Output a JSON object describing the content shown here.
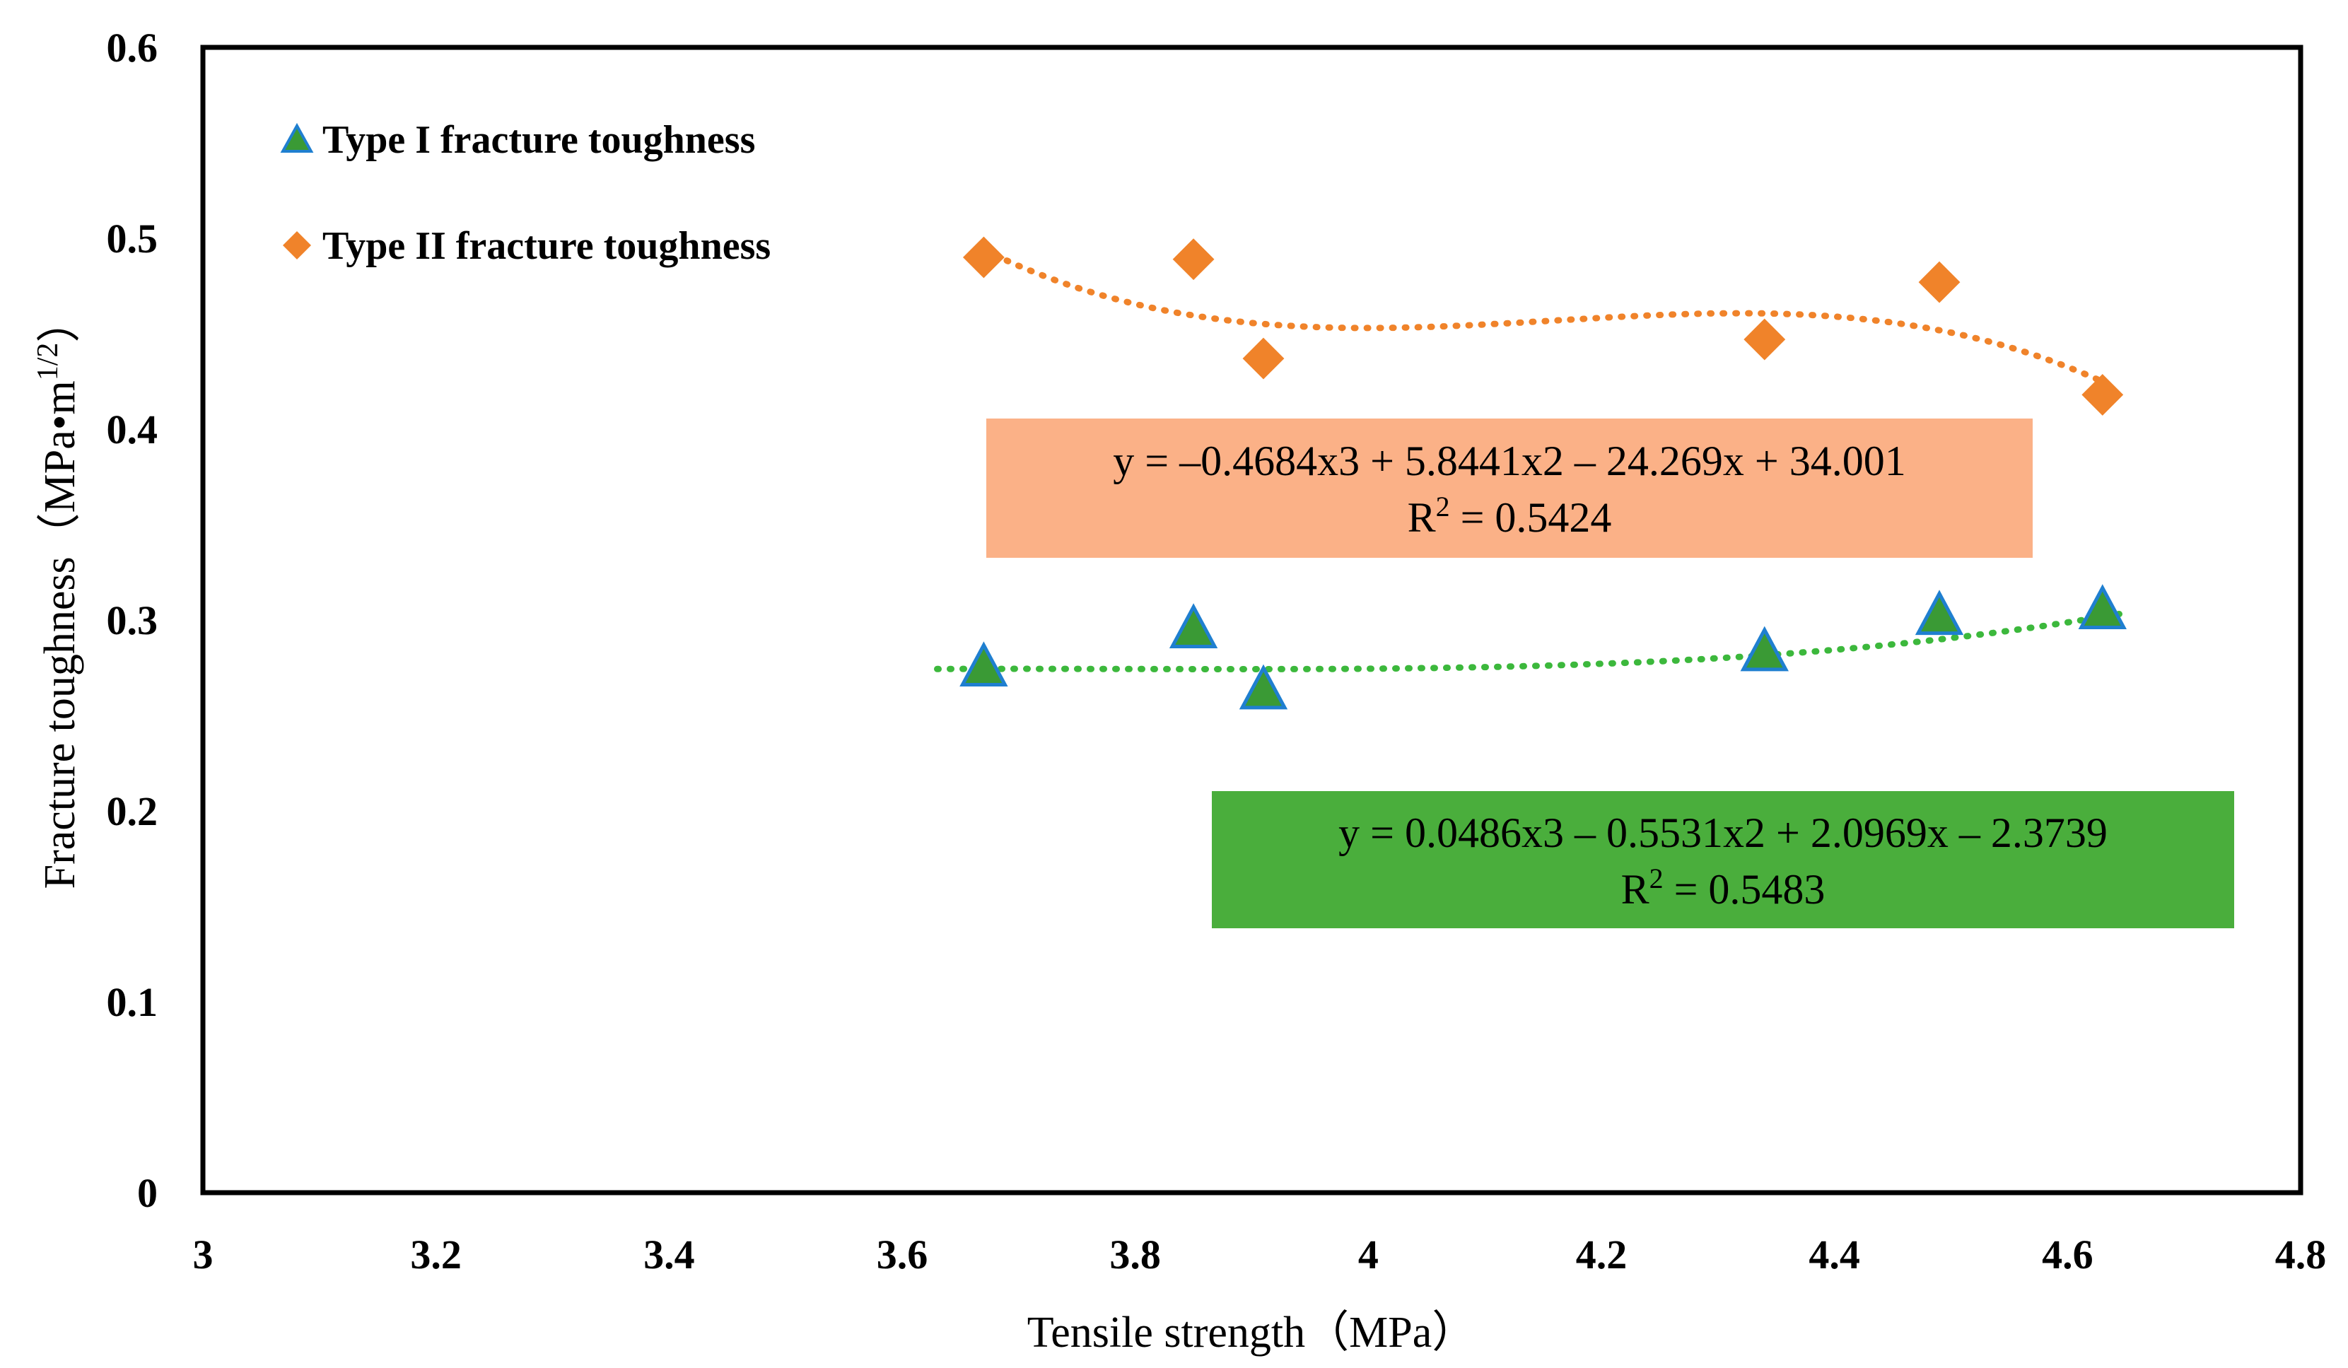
{
  "chart_data": {
    "type": "scatter",
    "title": "",
    "xlabel": "Tensile strength（MPa）",
    "ylabel": "Fracture toughness（MPa•m1/2）",
    "ylabel_main": "Fracture toughness（MPa•m",
    "ylabel_sup": "1/2",
    "ylabel_end": "）",
    "xlim": [
      3,
      4.8
    ],
    "ylim": [
      0,
      0.6
    ],
    "xticks": [
      "3",
      "3.2",
      "3.4",
      "3.6",
      "3.8",
      "4",
      "4.2",
      "4.4",
      "4.6",
      "4.8"
    ],
    "yticks": [
      "0",
      "0.1",
      "0.2",
      "0.3",
      "0.4",
      "0.5",
      "0.6"
    ],
    "grid": false,
    "legend_position": "top-left",
    "series": [
      {
        "name": "Type I fracture toughness",
        "marker": "triangle",
        "color": "#3a9a35",
        "edge_color": "#1f7fd0",
        "points": [
          [
            3.67,
            0.275
          ],
          [
            3.85,
            0.295
          ],
          [
            3.91,
            0.263
          ],
          [
            4.34,
            0.283
          ],
          [
            4.49,
            0.302
          ],
          [
            4.63,
            0.305
          ]
        ],
        "trendline": {
          "type": "polynomial-3",
          "coefficients": [
            0.0486,
            -0.5531,
            2.0969,
            -2.3739
          ],
          "x_range": [
            3.63,
            4.65
          ],
          "color": "#3cb83c",
          "equation": "y = 0.0486x3 – 0.5531x2 + 2.0969x – 2.3739",
          "r2_label": "R",
          "r2_sup": "2",
          "r2_value": " = 0.5483",
          "box_color": "#4aae3c"
        }
      },
      {
        "name": "Type II fracture toughness",
        "marker": "diamond",
        "color": "#f0832a",
        "edge_color": "#f0832a",
        "points": [
          [
            3.67,
            0.49
          ],
          [
            3.85,
            0.489
          ],
          [
            3.91,
            0.437
          ],
          [
            4.34,
            0.447
          ],
          [
            4.49,
            0.477
          ],
          [
            4.63,
            0.418
          ]
        ],
        "trendline": {
          "type": "polynomial-3",
          "coefficients": [
            -0.4684,
            5.8441,
            -24.269,
            34.001
          ],
          "x_range": [
            3.67,
            4.63
          ],
          "color": "#f0832a",
          "equation": "y = –0.4684x3 + 5.8441x2 – 24.269x + 34.001",
          "r2_label": "R",
          "r2_sup": "2",
          "r2_value": " = 0.5424",
          "box_color": "#fbb187"
        }
      }
    ]
  }
}
